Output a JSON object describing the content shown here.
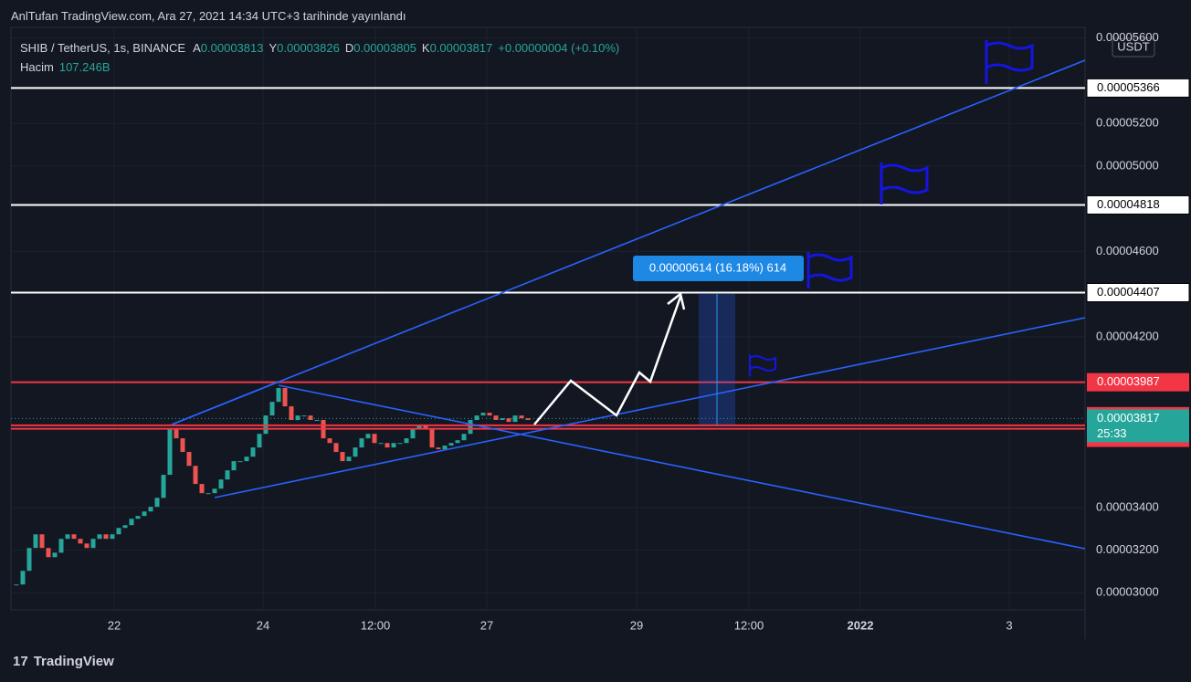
{
  "header": {
    "publisher": "AnlTufan TradingView.com, Ara 27, 2021 14:34 UTC+3 tarihinde yayınlandı"
  },
  "legend": {
    "symbol": "SHIB / TetherUS, 1s, BINANCE",
    "ohlc": [
      {
        "label": "A",
        "value": "0.00003813"
      },
      {
        "label": "Y",
        "value": "0.00003826"
      },
      {
        "label": "D",
        "value": "0.00003805"
      },
      {
        "label": "K",
        "value": "0.00003817"
      }
    ],
    "change": "+0.00000004 (+0.10%)",
    "volume_label": "Hacim",
    "volume": "107.246B"
  },
  "chart_data": {
    "type": "candlestick",
    "currency": "USDT",
    "ylim": [
      2.92e-05,
      5.65e-05
    ],
    "yticks": [
      {
        "value": 3e-05,
        "label": "0.00003000"
      },
      {
        "value": 3.2e-05,
        "label": "0.00003200"
      },
      {
        "value": 3.4e-05,
        "label": "0.00003400"
      },
      {
        "value": 4.2e-05,
        "label": "0.00004200"
      },
      {
        "value": 4.6e-05,
        "label": "0.00004600"
      },
      {
        "value": 5e-05,
        "label": "0.00005000"
      },
      {
        "value": 5.2e-05,
        "label": "0.00005200"
      },
      {
        "value": 5.6e-05,
        "label": "0.00005600"
      }
    ],
    "x_labels": [
      "22",
      "24",
      "12:00",
      "27",
      "29",
      "12:00",
      "2022",
      "3"
    ],
    "close": [
      3.039e-05,
      3.103e-05,
      3.21e-05,
      3.274e-05,
      3.21e-05,
      3.167e-05,
      3.188e-05,
      3.253e-05,
      3.274e-05,
      3.253e-05,
      3.231e-05,
      3.21e-05,
      3.253e-05,
      3.274e-05,
      3.253e-05,
      3.274e-05,
      3.304e-05,
      3.317e-05,
      3.347e-05,
      3.36e-05,
      3.381e-05,
      3.403e-05,
      3.445e-05,
      3.553e-05,
      3.767e-05,
      3.724e-05,
      3.66e-05,
      3.595e-05,
      3.51e-05,
      3.467e-05,
      3.467e-05,
      3.488e-05,
      3.531e-05,
      3.574e-05,
      3.617e-05,
      3.617e-05,
      3.638e-05,
      3.681e-05,
      3.745e-05,
      3.831e-05,
      3.895e-05,
      3.96e-05,
      3.874e-05,
      3.81e-05,
      3.831e-05,
      3.831e-05,
      3.81e-05,
      3.81e-05,
      3.724e-05,
      3.702e-05,
      3.66e-05,
      3.617e-05,
      3.638e-05,
      3.681e-05,
      3.724e-05,
      3.745e-05,
      3.702e-05,
      3.702e-05,
      3.681e-05,
      3.702e-05,
      3.702e-05,
      3.724e-05,
      3.767e-05,
      3.788e-05,
      3.767e-05,
      3.681e-05,
      3.673e-05,
      3.69e-05,
      3.702e-05,
      3.715e-05,
      3.745e-05,
      3.81e-05,
      3.831e-05,
      3.844e-05,
      3.831e-05,
      3.81e-05,
      3.818e-05,
      3.801e-05,
      3.831e-05,
      3.818e-05,
      3.81e-05
    ],
    "levels": [
      {
        "value": 5.366e-05,
        "color": "#ffffff"
      },
      {
        "value": 4.818e-05,
        "color": "#ffffff"
      },
      {
        "value": 4.407e-05,
        "color": "#ffffff"
      },
      {
        "value": 3.987e-05,
        "color": "#f23645"
      },
      {
        "value": 3.785e-05,
        "color": "#f23645"
      },
      {
        "value": 3.769e-05,
        "color": "#f23645"
      }
    ],
    "current": {
      "value": 3.817e-05,
      "countdown": "25:33",
      "color": "#26a69a"
    },
    "measure": "0.00000614 (16.18%) 614",
    "colors": {
      "up": "#26a69a",
      "down": "#ef5350"
    }
  },
  "footer": {
    "brand": "TradingView"
  }
}
